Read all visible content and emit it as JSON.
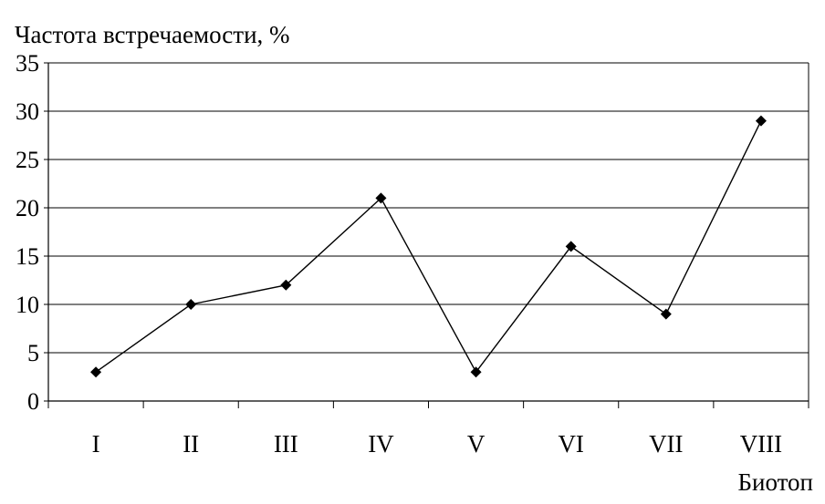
{
  "chart_data": {
    "type": "line",
    "title": "",
    "ylabel": "Частота встречаемости, %",
    "xlabel": "Биотоп",
    "categories": [
      "I",
      "II",
      "III",
      "IV",
      "V",
      "VI",
      "VII",
      "VIII"
    ],
    "series": [
      {
        "values": [
          3,
          10,
          12,
          21,
          3,
          16,
          9,
          29
        ]
      }
    ],
    "ylim": [
      0,
      35
    ],
    "yticks": [
      "0",
      "5",
      "10",
      "15",
      "20",
      "25",
      "30",
      "35"
    ],
    "grid": true,
    "legend": "none",
    "marker": "diamond",
    "line_color": "#000000",
    "grid_color": "#000000"
  }
}
